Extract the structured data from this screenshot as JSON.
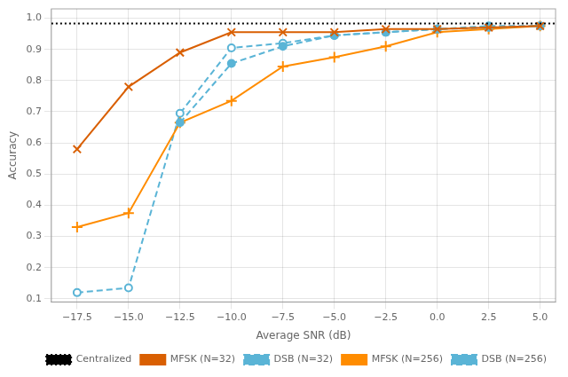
{
  "chart_data": {
    "type": "line",
    "xlabel": "Average SNR (dB)",
    "ylabel": "Accuracy",
    "xlim": [
      -18.75,
      5.75
    ],
    "ylim": [
      0.09,
      1.03
    ],
    "xticks": [
      {
        "value": -17.5,
        "label": "−17.5"
      },
      {
        "value": -15.0,
        "label": "−15.0"
      },
      {
        "value": -12.5,
        "label": "−12.5"
      },
      {
        "value": -10.0,
        "label": "−10.0"
      },
      {
        "value": -7.5,
        "label": "−7.5"
      },
      {
        "value": -5.0,
        "label": "−5.0"
      },
      {
        "value": -2.5,
        "label": "−2.5"
      },
      {
        "value": 0.0,
        "label": "0.0"
      },
      2.5,
      {
        "value": 5.0,
        "label": "5.0"
      }
    ],
    "yticks": [
      0.1,
      0.2,
      0.3,
      0.4,
      0.5,
      0.6,
      0.7,
      0.8,
      0.9,
      {
        "value": 1.0,
        "label": "1.0"
      }
    ],
    "grid": true,
    "legend": "lower right",
    "series": [
      {
        "name": "Centralized",
        "type": "hline",
        "color": "#000000",
        "line_style": "dotted",
        "values": [
          0.983
        ]
      },
      {
        "name": "MFSK (N=32)",
        "color": "#d95f02",
        "line_style": "solid",
        "marker": "x",
        "x": [
          -17.5,
          -15.0,
          -12.5,
          -10.0,
          -7.5,
          -5.0,
          -2.5,
          0.0,
          2.5,
          5.0
        ],
        "values": [
          0.58,
          0.78,
          0.89,
          0.955,
          0.955,
          0.955,
          0.965,
          0.965,
          0.97,
          0.975
        ]
      },
      {
        "name": "DSB (N=32)",
        "color": "#5ab4d6",
        "line_style": "dashed",
        "marker": "circle",
        "x": [
          -12.5,
          -10.0,
          -7.5,
          -5.0,
          -2.5,
          0.0,
          2.5,
          5.0
        ],
        "values": [
          0.665,
          0.855,
          0.91,
          0.945,
          0.955,
          0.965,
          0.97,
          0.975
        ]
      },
      {
        "name": "MFSK (N=256)",
        "color": "#ff8c00",
        "line_style": "solid",
        "marker": "plus",
        "x": [
          -17.5,
          -15.0,
          -12.5,
          -10.0,
          -7.5,
          -5.0,
          -2.5,
          0.0,
          2.5,
          5.0
        ],
        "values": [
          0.33,
          0.375,
          0.665,
          0.735,
          0.845,
          0.875,
          0.91,
          0.955,
          0.965,
          0.975
        ]
      },
      {
        "name": "DSB (N=256)",
        "color": "#5ab4d6",
        "line_style": "dashed",
        "marker": "open_circle",
        "x": [
          -17.5,
          -15.0,
          -12.5,
          -10.0,
          -7.5,
          -5.0,
          -2.5,
          0.0,
          2.5,
          5.0
        ],
        "values": [
          0.12,
          0.135,
          0.695,
          0.905,
          0.92,
          0.945,
          0.955,
          0.965,
          0.975,
          0.975
        ]
      }
    ]
  }
}
